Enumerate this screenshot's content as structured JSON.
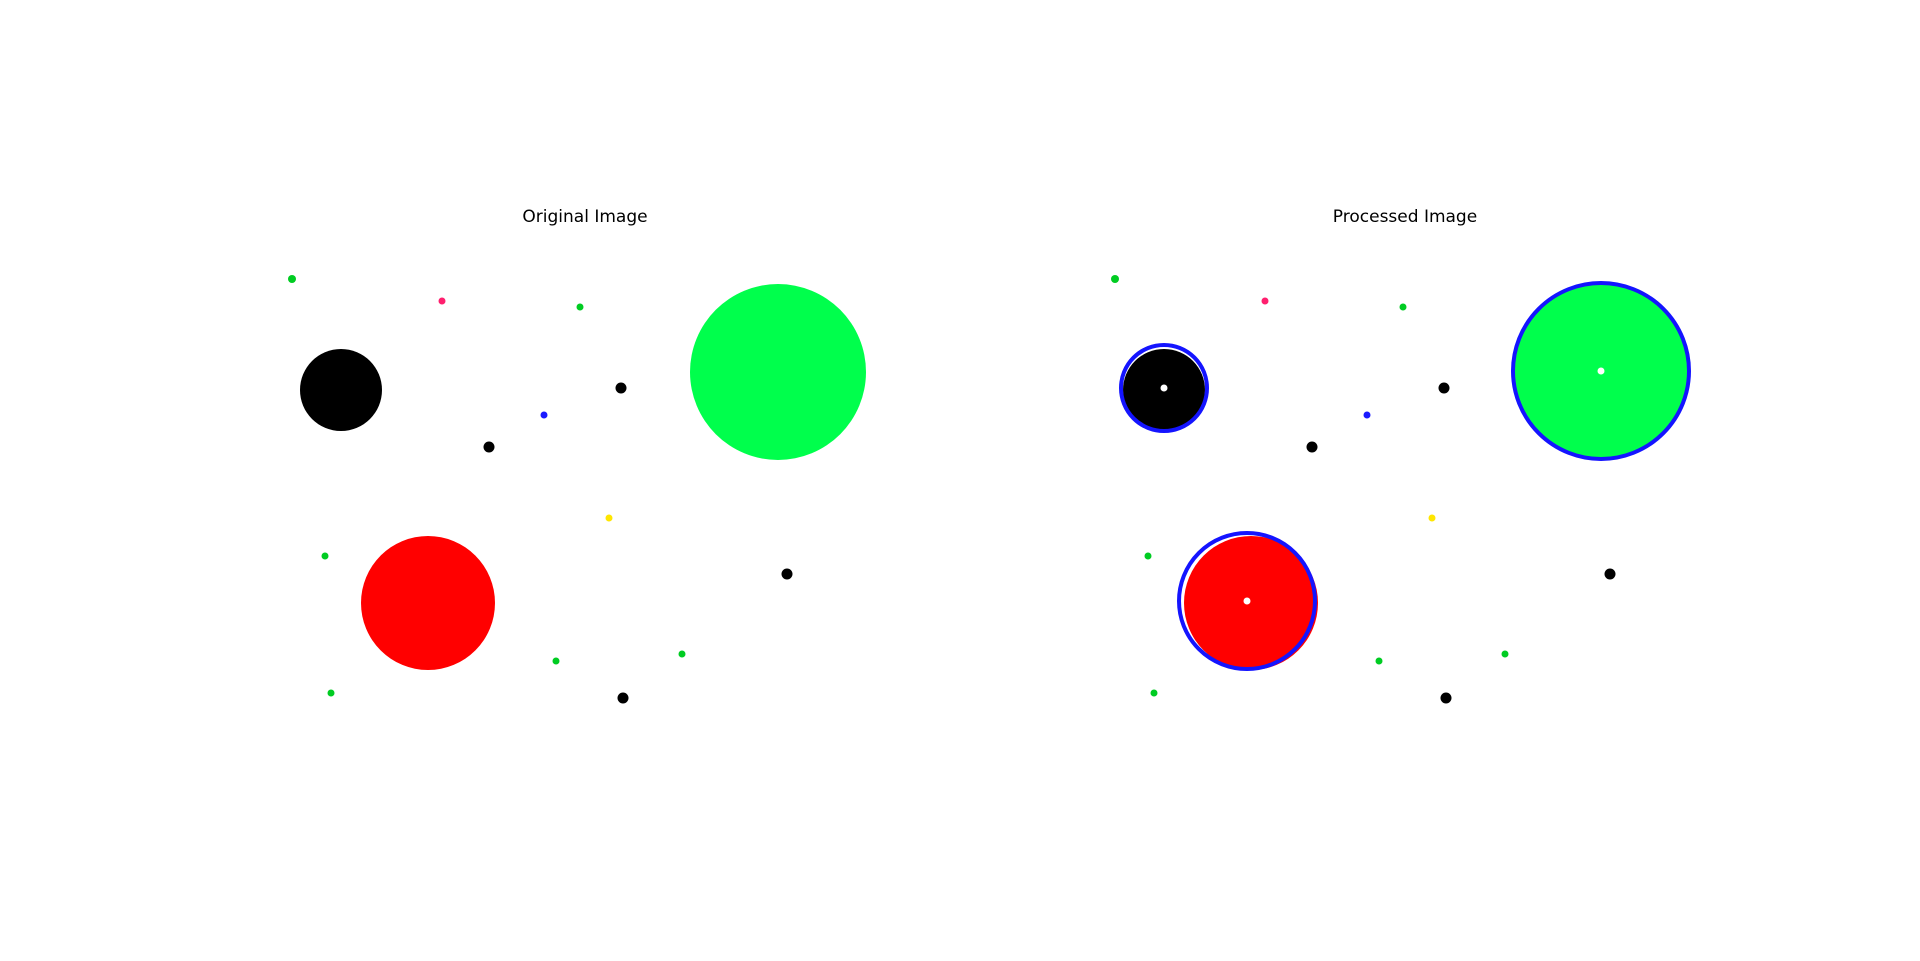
{
  "panels": [
    {
      "id": "original",
      "title": "Original Image",
      "detect": false
    },
    {
      "id": "processed",
      "title": "Processed Image",
      "detect": true
    }
  ],
  "colors": {
    "background": "#ffffff",
    "detection_outline": "#1414ff",
    "center_marker": "#ffffff"
  },
  "shapes": {
    "large_circles": [
      {
        "name": "black-circle",
        "color": "#000000"
      },
      {
        "name": "green-circle",
        "color": "#00ff4c"
      },
      {
        "name": "red-circle",
        "color": "#ff0000"
      }
    ],
    "small_dots": [
      {
        "name": "dot-green-1",
        "color": "#00cc22"
      },
      {
        "name": "dot-pink",
        "color": "#ff1f6e"
      },
      {
        "name": "dot-green-2",
        "color": "#00cc22"
      },
      {
        "name": "dot-black-1",
        "color": "#000000"
      },
      {
        "name": "dot-blue",
        "color": "#1a1aff"
      },
      {
        "name": "dot-black-2",
        "color": "#000000"
      },
      {
        "name": "dot-yellow",
        "color": "#ffe600"
      },
      {
        "name": "dot-green-3",
        "color": "#00cc22"
      },
      {
        "name": "dot-black-3",
        "color": "#000000"
      },
      {
        "name": "dot-green-4",
        "color": "#00cc22"
      },
      {
        "name": "dot-green-5",
        "color": "#00cc22"
      },
      {
        "name": "dot-green-6",
        "color": "#00cc22"
      },
      {
        "name": "dot-black-4",
        "color": "#000000"
      }
    ]
  }
}
